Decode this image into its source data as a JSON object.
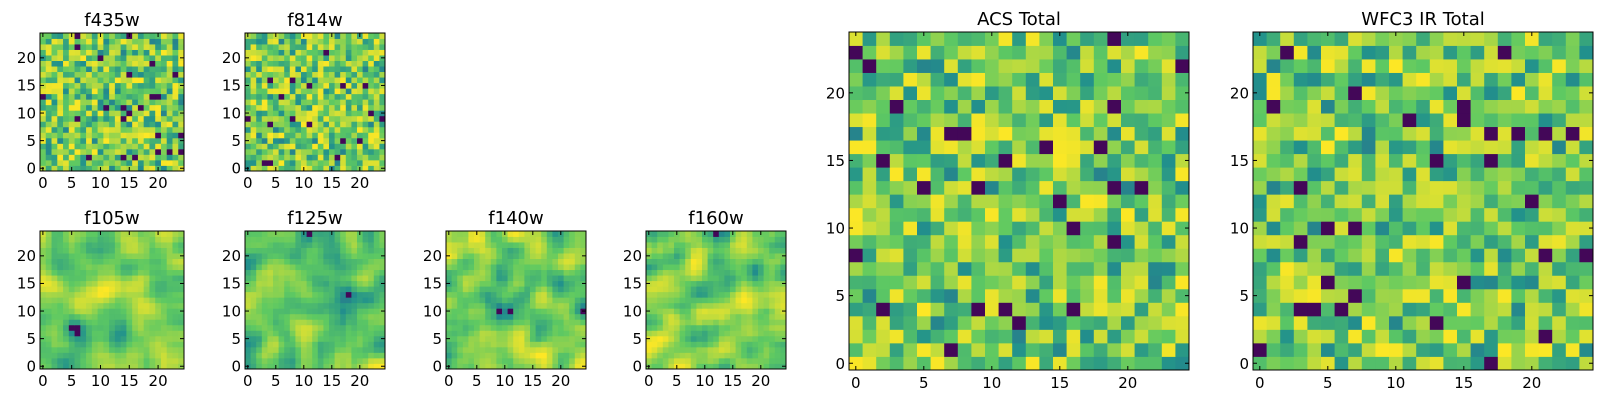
{
  "chart_data": [
    {
      "type": "heatmap",
      "title": "f435w",
      "x_ticks": [
        "0",
        "5",
        "10",
        "15",
        "20"
      ],
      "y_ticks": [
        "0",
        "5",
        "10",
        "15",
        "20"
      ],
      "xlim": [
        0,
        25
      ],
      "ylim": [
        0,
        25
      ],
      "grid_size": 25,
      "colormap": "viridis",
      "texture": 0
    },
    {
      "type": "heatmap",
      "title": "f814w",
      "x_ticks": [
        "0",
        "5",
        "10",
        "15",
        "20"
      ],
      "y_ticks": [
        "0",
        "5",
        "10",
        "15",
        "20"
      ],
      "xlim": [
        0,
        25
      ],
      "ylim": [
        0,
        25
      ],
      "grid_size": 25,
      "colormap": "viridis",
      "texture": 0
    },
    {
      "type": "heatmap",
      "title": "f105w",
      "x_ticks": [
        "0",
        "5",
        "10",
        "15",
        "20"
      ],
      "y_ticks": [
        "0",
        "5",
        "10",
        "15",
        "20"
      ],
      "xlim": [
        0,
        25
      ],
      "ylim": [
        0,
        25
      ],
      "grid_size": 25,
      "colormap": "viridis",
      "texture": 1
    },
    {
      "type": "heatmap",
      "title": "f125w",
      "x_ticks": [
        "0",
        "5",
        "10",
        "15",
        "20"
      ],
      "y_ticks": [
        "0",
        "5",
        "10",
        "15",
        "20"
      ],
      "xlim": [
        0,
        25
      ],
      "ylim": [
        0,
        25
      ],
      "grid_size": 25,
      "colormap": "viridis",
      "texture": 1
    },
    {
      "type": "heatmap",
      "title": "f140w",
      "x_ticks": [
        "0",
        "5",
        "10",
        "15",
        "20"
      ],
      "y_ticks": [
        "0",
        "5",
        "10",
        "15",
        "20"
      ],
      "xlim": [
        0,
        25
      ],
      "ylim": [
        0,
        25
      ],
      "grid_size": 25,
      "colormap": "viridis",
      "texture": 1
    },
    {
      "type": "heatmap",
      "title": "f160w",
      "x_ticks": [
        "0",
        "5",
        "10",
        "15",
        "20"
      ],
      "y_ticks": [
        "0",
        "5",
        "10",
        "15",
        "20"
      ],
      "xlim": [
        0,
        25
      ],
      "ylim": [
        0,
        25
      ],
      "grid_size": 25,
      "colormap": "viridis",
      "texture": 1
    },
    {
      "type": "heatmap",
      "title": "ACS Total",
      "x_ticks": [
        "0",
        "5",
        "10",
        "15",
        "20"
      ],
      "y_ticks": [
        "0",
        "5",
        "10",
        "15",
        "20"
      ],
      "xlim": [
        0,
        25
      ],
      "ylim": [
        0,
        25
      ],
      "grid_size": 25,
      "colormap": "viridis",
      "texture": 0
    },
    {
      "type": "heatmap",
      "title": "WFC3 IR Total",
      "x_ticks": [
        "0",
        "5",
        "10",
        "15",
        "20"
      ],
      "y_ticks": [
        "0",
        "5",
        "10",
        "15",
        "20"
      ],
      "xlim": [
        0,
        25
      ],
      "ylim": [
        0,
        25
      ],
      "grid_size": 25,
      "colormap": "viridis",
      "texture": 0
    }
  ],
  "colors": {
    "colormap_stops": [
      "#440154",
      "#3b528b",
      "#21918c",
      "#5ec962",
      "#fde725"
    ],
    "axes_frame": "#000000",
    "background": "#ffffff"
  }
}
